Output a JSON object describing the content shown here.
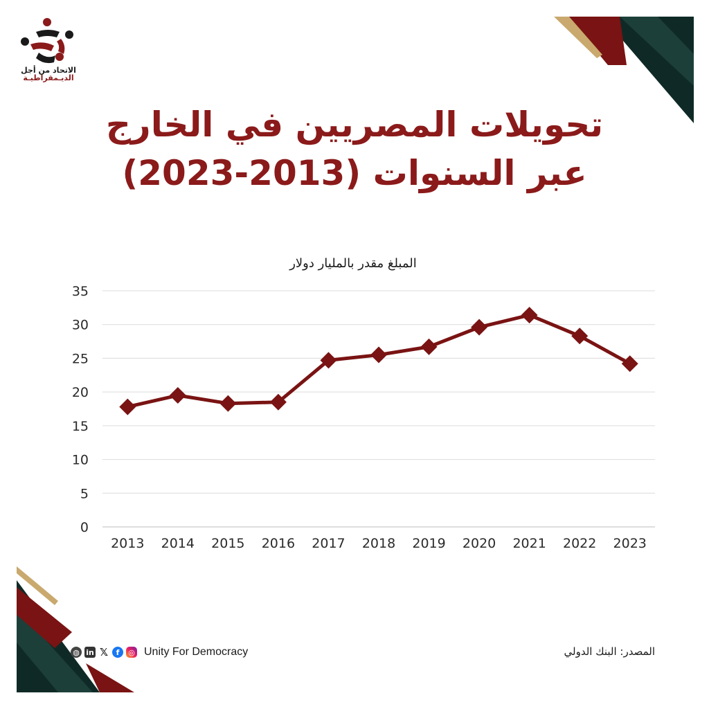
{
  "logo": {
    "line1": "الاتحاد من أجل",
    "line2": "الديـمقراطيـة"
  },
  "title": {
    "line1": "تحويلات المصريين في الخارج",
    "line2": "عبر السنوات (2013-2023)"
  },
  "chart_data": {
    "type": "line",
    "title": "المبلغ مقدر بالمليار دولار",
    "xlabel": "",
    "ylabel": "",
    "categories": [
      "2013",
      "2014",
      "2015",
      "2016",
      "2017",
      "2018",
      "2019",
      "2020",
      "2021",
      "2022",
      "2023"
    ],
    "series": [
      {
        "values": [
          17.8,
          19.5,
          18.3,
          18.5,
          24.7,
          25.5,
          26.7,
          29.6,
          31.4,
          28.3,
          24.2
        ]
      }
    ],
    "ylim": [
      0,
      35
    ],
    "yticks": [
      0,
      5,
      10,
      15,
      20,
      25,
      30,
      35
    ],
    "grid": true,
    "line_color": "#7a1313"
  },
  "footer": {
    "source": "المصدر: البنك الدولي",
    "brand": "Unity For Democracy"
  },
  "icons": [
    "globe-icon",
    "linkedin-icon",
    "x-icon",
    "facebook-icon",
    "instagram-icon"
  ]
}
